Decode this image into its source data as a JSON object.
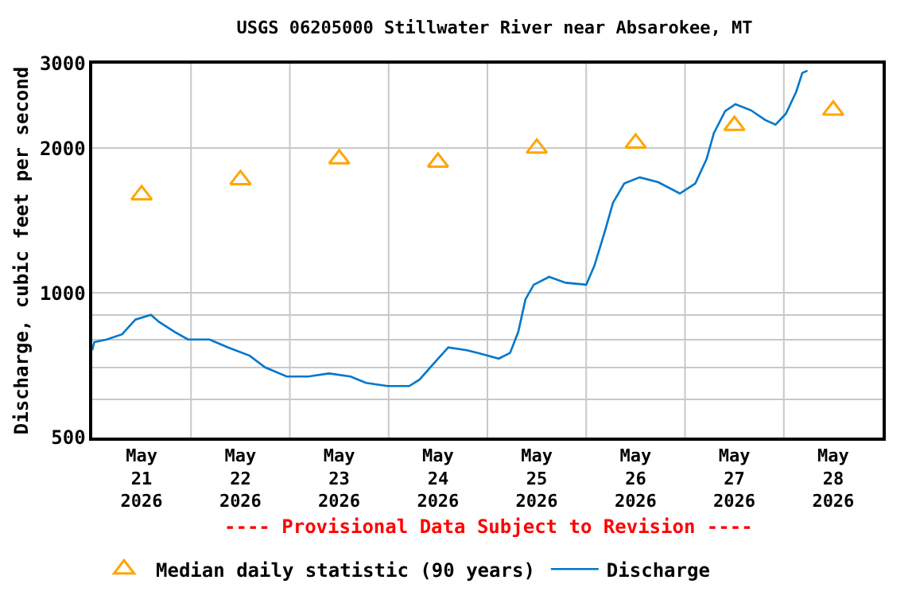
{
  "chart_data": {
    "type": "line",
    "title": "USGS 06205000 Stillwater River near Absarokee, MT",
    "ylabel": "Discharge, cubic feet per second",
    "annotations": [
      "---- Provisional Data Subject to Revision ----"
    ],
    "log": "y",
    "grid": true,
    "legend": "bottom",
    "xlim": [
      "2026-05-21T00:00",
      "2026-05-29T00:00"
    ],
    "xticks": [
      {
        "value": "2026-05-21T12:00",
        "label": "May\n21\n2026"
      },
      {
        "value": "2026-05-22T00:00",
        "label": null
      },
      {
        "value": "2026-05-22T12:00",
        "label": "May\n22\n2026"
      },
      {
        "value": "2026-05-23T00:00",
        "label": null
      },
      {
        "value": "2026-05-23T12:00",
        "label": "May\n23\n2026"
      },
      {
        "value": "2026-05-24T00:00",
        "label": null
      },
      {
        "value": "2026-05-24T12:00",
        "label": "May\n24\n2026"
      },
      {
        "value": "2026-05-25T00:00",
        "label": null
      },
      {
        "value": "2026-05-25T12:00",
        "label": "May\n25\n2026"
      },
      {
        "value": "2026-05-26T00:00",
        "label": null
      },
      {
        "value": "2026-05-26T12:00",
        "label": "May\n26\n2026"
      },
      {
        "value": "2026-05-27T00:00",
        "label": null
      },
      {
        "value": "2026-05-27T12:00",
        "label": "May\n27\n2026"
      },
      {
        "value": "2026-05-28T00:00",
        "label": null
      },
      {
        "value": "2026-05-28T12:00",
        "label": "May\n28\n2026"
      }
    ],
    "ylim": [
      500,
      3000
    ],
    "yticks": [
      500,
      {
        "value": 600,
        "label": null
      },
      {
        "value": 700,
        "label": null
      },
      {
        "value": 800,
        "label": null
      },
      {
        "value": 900,
        "label": null
      },
      1000,
      2000,
      3000
    ],
    "series": [
      {
        "name": "Median daily statistic (90 years)",
        "type": "scatter",
        "marker": "triangle",
        "color": "#ffa500",
        "x": [
          "2026-05-21T12:00",
          "2026-05-22T12:00",
          "2026-05-23T12:00",
          "2026-05-24T12:00",
          "2026-05-25T12:00",
          "2026-05-26T12:00",
          "2026-05-27T12:00",
          "2026-05-28T12:00"
        ],
        "values": [
          1600,
          1720,
          1900,
          1870,
          2000,
          2050,
          2230,
          2400
        ]
      },
      {
        "name": "Discharge",
        "marker": "none",
        "line_style": "solid",
        "color": "#0077cc",
        "x": [
          "2026-05-21T00:00",
          "2026-05-21T00:30",
          "2026-05-21T03:30",
          "2026-05-21T07:15",
          "2026-05-21T10:30",
          "2026-05-21T14:15",
          "2026-05-21T16:15",
          "2026-05-21T20:00",
          "2026-05-21T23:15",
          "2026-05-22T04:30",
          "2026-05-22T09:00",
          "2026-05-22T14:15",
          "2026-05-22T18:00",
          "2026-05-22T23:15",
          "2026-05-23T04:30",
          "2026-05-23T09:30",
          "2026-05-23T14:45",
          "2026-05-23T18:30",
          "2026-05-23T23:45",
          "2026-05-24T05:00",
          "2026-05-24T07:30",
          "2026-05-24T10:45",
          "2026-05-24T14:30",
          "2026-05-24T19:00",
          "2026-05-24T21:45",
          "2026-05-25T00:15",
          "2026-05-25T02:45",
          "2026-05-25T05:30",
          "2026-05-25T07:30",
          "2026-05-25T09:15",
          "2026-05-25T11:15",
          "2026-05-25T15:00",
          "2026-05-25T19:00",
          "2026-05-26T00:00",
          "2026-05-26T02:00",
          "2026-05-26T04:30",
          "2026-05-26T06:30",
          "2026-05-26T09:15",
          "2026-05-26T13:00",
          "2026-05-26T17:30",
          "2026-05-26T22:45",
          "2026-05-27T02:30",
          "2026-05-27T05:15",
          "2026-05-27T07:00",
          "2026-05-27T09:45",
          "2026-05-27T12:15",
          "2026-05-27T16:00",
          "2026-05-27T19:30",
          "2026-05-27T22:00",
          "2026-05-28T00:30",
          "2026-05-28T03:00",
          "2026-05-28T04:30",
          "2026-05-28T05:45"
        ],
        "values": [
          760,
          790,
          800,
          820,
          880,
          900,
          870,
          830,
          800,
          800,
          770,
          740,
          700,
          670,
          670,
          680,
          670,
          650,
          640,
          640,
          660,
          710,
          770,
          760,
          750,
          740,
          730,
          750,
          830,
          970,
          1040,
          1080,
          1050,
          1040,
          1140,
          1340,
          1540,
          1690,
          1740,
          1700,
          1610,
          1690,
          1900,
          2150,
          2390,
          2470,
          2400,
          2290,
          2240,
          2360,
          2620,
          2870,
          2900
        ]
      }
    ]
  }
}
